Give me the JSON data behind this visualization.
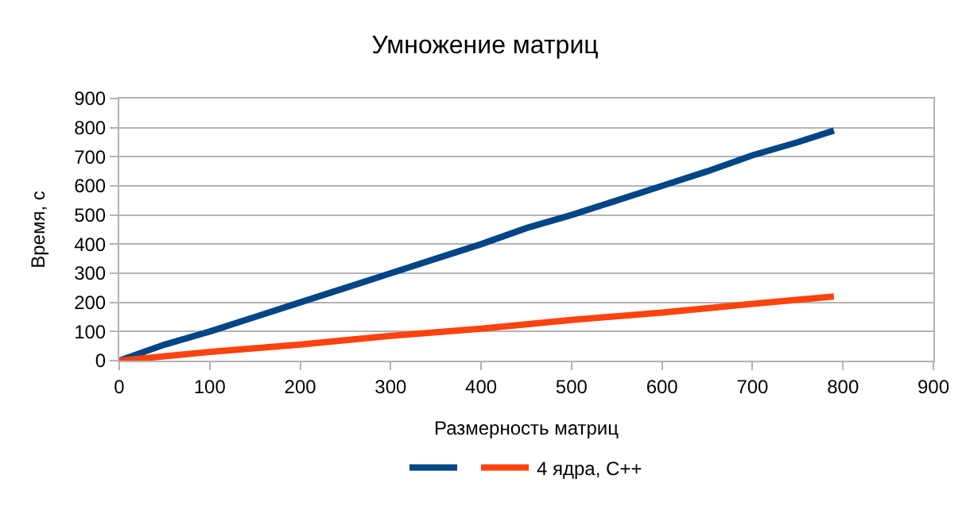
{
  "chart_data": {
    "type": "line",
    "title": "Умножение матриц",
    "xlabel": "Размерность матриц",
    "ylabel": "Время, с",
    "xlim": [
      0,
      900
    ],
    "xticks": [
      0,
      100,
      200,
      300,
      400,
      500,
      600,
      700,
      800,
      900
    ],
    "ylim": [
      0,
      900
    ],
    "yticks": [
      0,
      100,
      200,
      300,
      400,
      500,
      600,
      700,
      800,
      900
    ],
    "grid": "y",
    "legend": "bottom",
    "marker": "none",
    "line_style": "solid",
    "series": [
      {
        "color": "#004586",
        "x": [
          0,
          50,
          100,
          150,
          200,
          250,
          300,
          350,
          400,
          450,
          500,
          550,
          600,
          650,
          700,
          750,
          790
        ],
        "values": [
          0,
          55,
          100,
          150,
          200,
          250,
          300,
          350,
          400,
          455,
          500,
          550,
          600,
          650,
          705,
          750,
          790
        ]
      },
      {
        "name": "4 ядра, C++",
        "color": "#ff420e",
        "x": [
          0,
          100,
          200,
          300,
          400,
          500,
          600,
          700,
          790
        ],
        "values": [
          0,
          30,
          55,
          85,
          110,
          140,
          165,
          195,
          220
        ]
      }
    ]
  }
}
